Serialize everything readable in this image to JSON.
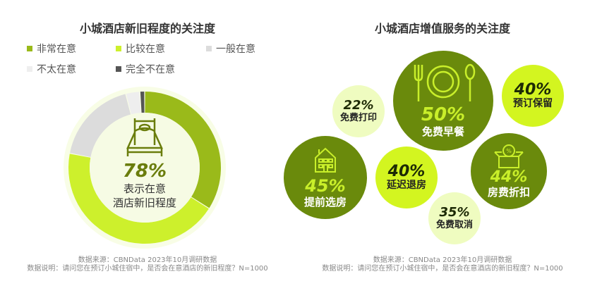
{
  "left": {
    "title": "小城酒店新旧程度的关注度",
    "center_pct": "78%",
    "center_label_1": "表示在意",
    "center_label_2": "酒店新旧程度",
    "center_icon": "bed-icon",
    "footer_source": "数据来源：CBNData 2023年10月调研数据",
    "footer_note": "数据说明：请问您在预订小城住宿中，是否会在意酒店的新旧程度？N=1000"
  },
  "chart_data": [
    {
      "type": "pie",
      "title": "小城酒店新旧程度的关注度",
      "donut": true,
      "legend_position": "top",
      "categories": [
        "非常在意",
        "比较在意",
        "一般在意",
        "不太在意",
        "完全不在意"
      ],
      "values": [
        34,
        44,
        18,
        3,
        1
      ],
      "colors": [
        "#9aba1a",
        "#cdf02c",
        "#dcdcdc",
        "#eeeeee",
        "#555555"
      ]
    },
    {
      "type": "bubble",
      "title": "小城酒店增值服务的关注度",
      "categories": [
        "免费早餐",
        "预订保留",
        "免费打印",
        "提前选房",
        "延迟退房",
        "房费折扣",
        "免费取消"
      ],
      "values": [
        50,
        40,
        22,
        45,
        40,
        44,
        35
      ],
      "labels": [
        "50%",
        "40%",
        "22%",
        "45%",
        "40%",
        "44%",
        "35%"
      ],
      "icons": [
        "plate-cutlery-icon",
        "",
        "",
        "house-icon",
        "",
        "discount-box-icon",
        ""
      ]
    }
  ],
  "right": {
    "title": "小城酒店增值服务的关注度",
    "footer_source": "数据来源：CBNData 2023年10月调研数据",
    "footer_note": "数据说明：请问您在预订小城住宿中，是否会在意酒店的新旧程度？N=1000"
  }
}
